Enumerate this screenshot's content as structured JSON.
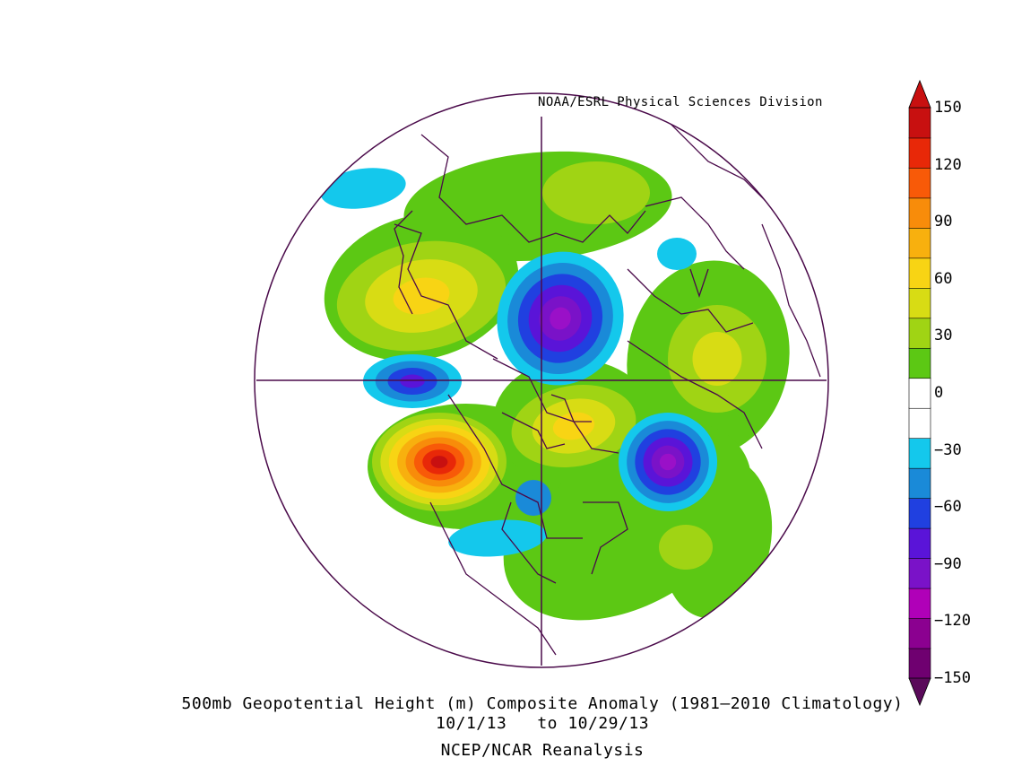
{
  "credit": "NOAA/ESRL Physical Sciences Division",
  "caption": {
    "line1": "500mb Geopotential Height (m) Composite Anomaly (1981–2010 Climatology)",
    "line2": "10/1/13   to 10/29/13",
    "line3": "NCEP/NCAR Reanalysis"
  },
  "colorbar": {
    "levels": [
      "150",
      "120",
      "90",
      "60",
      "30",
      "0",
      "−30",
      "−60",
      "−90",
      "−120",
      "−150"
    ],
    "colors": [
      "#6f0070",
      "#8b0090",
      "#b000b8",
      "#7a12c8",
      "#5a14d8",
      "#2040e0",
      "#1a8ad8",
      "#14c8ec",
      "#ffffff",
      "#ffffff",
      "#5cc814",
      "#a0d414",
      "#d8dc14",
      "#f8d414",
      "#f8b00e",
      "#f88c0a",
      "#f85a08",
      "#e82808",
      "#c81010"
    ]
  },
  "map": {
    "projection": "north-polar-stereographic",
    "palette": {
      "p30": "#5cc814",
      "p45": "#a0d414",
      "p60": "#d8dc14",
      "p75": "#f8d414",
      "p90": "#f8b00e",
      "p105": "#f88c0a",
      "p120": "#f85a08",
      "p135": "#e82808",
      "p150": "#c81010",
      "n30": "#14c8ec",
      "n45": "#1a8ad8",
      "n60": "#2040e0",
      "n75": "#5a14d8",
      "n90": "#7a12c8",
      "n105": "#9a10c8",
      "coast": "#4a0a4a"
    }
  }
}
